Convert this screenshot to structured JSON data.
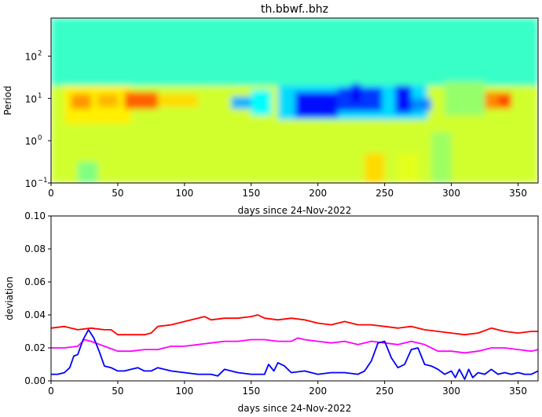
{
  "chart_data": [
    {
      "type": "heatmap",
      "title": "th.bbwf..bhz",
      "xlabel": "days since 24-Nov-2022",
      "ylabel": "Period",
      "xlim": [
        0,
        365
      ],
      "ylim_log10": [
        -1,
        2.9
      ],
      "x_ticks": [
        0,
        50,
        100,
        150,
        200,
        250,
        300,
        350
      ],
      "y_ticks": [
        {
          "base": "10",
          "exp": "−1",
          "log10": -1
        },
        {
          "base": "10",
          "exp": "0",
          "log10": 0
        },
        {
          "base": "10",
          "exp": "1",
          "log10": 1
        },
        {
          "base": "10",
          "exp": "2",
          "log10": 2
        }
      ],
      "colormap": "jet",
      "value_range": [
        0,
        1
      ],
      "background_level": 0.45,
      "regions": [
        {
          "x": [
            0,
            365
          ],
          "logp": [
            1.3,
            2.9
          ],
          "level": 0.43
        },
        {
          "x": [
            0,
            365
          ],
          "logp": [
            -1,
            1.3
          ],
          "level": 0.58
        },
        {
          "x": [
            10,
            60
          ],
          "logp": [
            0.4,
            1.3
          ],
          "level": 0.64
        },
        {
          "x": [
            15,
            30
          ],
          "logp": [
            0.75,
            1.1
          ],
          "level": 0.73
        },
        {
          "x": [
            35,
            50
          ],
          "logp": [
            0.8,
            1.1
          ],
          "level": 0.7
        },
        {
          "x": [
            55,
            80
          ],
          "logp": [
            0.75,
            1.15
          ],
          "level": 0.78
        },
        {
          "x": [
            80,
            110
          ],
          "logp": [
            0.8,
            1.1
          ],
          "level": 0.66
        },
        {
          "x": [
            20,
            35
          ],
          "logp": [
            -1,
            -0.5
          ],
          "level": 0.5
        },
        {
          "x": [
            135,
            165
          ],
          "logp": [
            0.75,
            1.05
          ],
          "level": 0.3
        },
        {
          "x": [
            150,
            165
          ],
          "logp": [
            0.6,
            1.2
          ],
          "level": 0.38
        },
        {
          "x": [
            170,
            282
          ],
          "logp": [
            0.5,
            1.3
          ],
          "level": 0.34
        },
        {
          "x": [
            183,
            215
          ],
          "logp": [
            0.55,
            1.15
          ],
          "level": 0.14
        },
        {
          "x": [
            215,
            248
          ],
          "logp": [
            0.7,
            1.25
          ],
          "level": 0.18
        },
        {
          "x": [
            225,
            232
          ],
          "logp": [
            0.9,
            1.35
          ],
          "level": 0.12
        },
        {
          "x": [
            258,
            270
          ],
          "logp": [
            0.65,
            1.3
          ],
          "level": 0.14
        },
        {
          "x": [
            270,
            285
          ],
          "logp": [
            0.7,
            1.0
          ],
          "level": 0.26
        },
        {
          "x": [
            285,
            300
          ],
          "logp": [
            -1,
            0.2
          ],
          "level": 0.53
        },
        {
          "x": [
            295,
            325
          ],
          "logp": [
            0.6,
            1.4
          ],
          "level": 0.52
        },
        {
          "x": [
            325,
            345
          ],
          "logp": [
            0.75,
            1.15
          ],
          "level": 0.74
        },
        {
          "x": [
            335,
            345
          ],
          "logp": [
            0.85,
            1.05
          ],
          "level": 0.82
        },
        {
          "x": [
            235,
            250
          ],
          "logp": [
            -1,
            -0.3
          ],
          "level": 0.66
        },
        {
          "x": [
            260,
            275
          ],
          "logp": [
            -1,
            -0.3
          ],
          "level": 0.6
        }
      ]
    },
    {
      "type": "line",
      "xlabel": "days since 24-Nov-2022",
      "ylabel": "deviation",
      "xlim": [
        0,
        365
      ],
      "ylim": [
        0.0,
        0.1
      ],
      "x_ticks": [
        0,
        50,
        100,
        150,
        200,
        250,
        300,
        350
      ],
      "y_ticks": [
        "0.00",
        "0.02",
        "0.04",
        "0.06",
        "0.08",
        "0.10"
      ],
      "series": [
        {
          "name": "red",
          "color": "#ff0000",
          "x": [
            0,
            10,
            20,
            30,
            40,
            45,
            50,
            60,
            70,
            75,
            80,
            90,
            100,
            110,
            115,
            120,
            130,
            140,
            150,
            155,
            160,
            170,
            180,
            190,
            200,
            210,
            220,
            230,
            240,
            250,
            260,
            270,
            280,
            290,
            300,
            310,
            320,
            330,
            340,
            350,
            360,
            365
          ],
          "y": [
            0.032,
            0.033,
            0.031,
            0.032,
            0.031,
            0.031,
            0.028,
            0.028,
            0.028,
            0.029,
            0.033,
            0.034,
            0.036,
            0.038,
            0.039,
            0.037,
            0.038,
            0.038,
            0.039,
            0.04,
            0.038,
            0.037,
            0.038,
            0.037,
            0.035,
            0.034,
            0.036,
            0.034,
            0.034,
            0.033,
            0.032,
            0.033,
            0.031,
            0.03,
            0.029,
            0.028,
            0.029,
            0.032,
            0.03,
            0.029,
            0.03,
            0.03
          ]
        },
        {
          "name": "magenta",
          "color": "#ff00ff",
          "x": [
            0,
            10,
            20,
            25,
            30,
            40,
            50,
            60,
            70,
            80,
            90,
            100,
            110,
            120,
            130,
            140,
            150,
            160,
            170,
            180,
            185,
            190,
            200,
            210,
            220,
            230,
            240,
            250,
            260,
            270,
            280,
            290,
            300,
            310,
            320,
            330,
            340,
            350,
            360,
            365
          ],
          "y": [
            0.02,
            0.02,
            0.021,
            0.025,
            0.024,
            0.021,
            0.018,
            0.018,
            0.019,
            0.019,
            0.021,
            0.021,
            0.022,
            0.023,
            0.024,
            0.024,
            0.025,
            0.025,
            0.024,
            0.024,
            0.026,
            0.025,
            0.024,
            0.023,
            0.024,
            0.022,
            0.024,
            0.023,
            0.022,
            0.024,
            0.022,
            0.018,
            0.018,
            0.017,
            0.018,
            0.02,
            0.02,
            0.019,
            0.018,
            0.019
          ]
        },
        {
          "name": "blue",
          "color": "#0000ff",
          "x": [
            0,
            5,
            10,
            14,
            17,
            20,
            24,
            28,
            32,
            36,
            40,
            45,
            50,
            55,
            60,
            65,
            70,
            75,
            80,
            90,
            100,
            110,
            120,
            125,
            130,
            140,
            150,
            160,
            163,
            167,
            170,
            175,
            180,
            190,
            200,
            210,
            220,
            230,
            235,
            240,
            245,
            250,
            255,
            260,
            265,
            270,
            275,
            280,
            285,
            290,
            295,
            300,
            303,
            306,
            310,
            313,
            316,
            320,
            325,
            330,
            335,
            340,
            345,
            350,
            355,
            360,
            365
          ],
          "y": [
            0.004,
            0.004,
            0.005,
            0.008,
            0.015,
            0.016,
            0.025,
            0.031,
            0.026,
            0.018,
            0.009,
            0.008,
            0.006,
            0.006,
            0.007,
            0.008,
            0.006,
            0.006,
            0.008,
            0.006,
            0.005,
            0.004,
            0.004,
            0.003,
            0.007,
            0.005,
            0.004,
            0.004,
            0.01,
            0.006,
            0.011,
            0.009,
            0.005,
            0.006,
            0.004,
            0.005,
            0.005,
            0.004,
            0.006,
            0.012,
            0.023,
            0.024,
            0.014,
            0.008,
            0.01,
            0.019,
            0.02,
            0.01,
            0.009,
            0.007,
            0.004,
            0.006,
            0.002,
            0.007,
            0.001,
            0.007,
            0.002,
            0.005,
            0.004,
            0.007,
            0.004,
            0.005,
            0.004,
            0.005,
            0.004,
            0.004,
            0.006
          ]
        }
      ]
    }
  ]
}
